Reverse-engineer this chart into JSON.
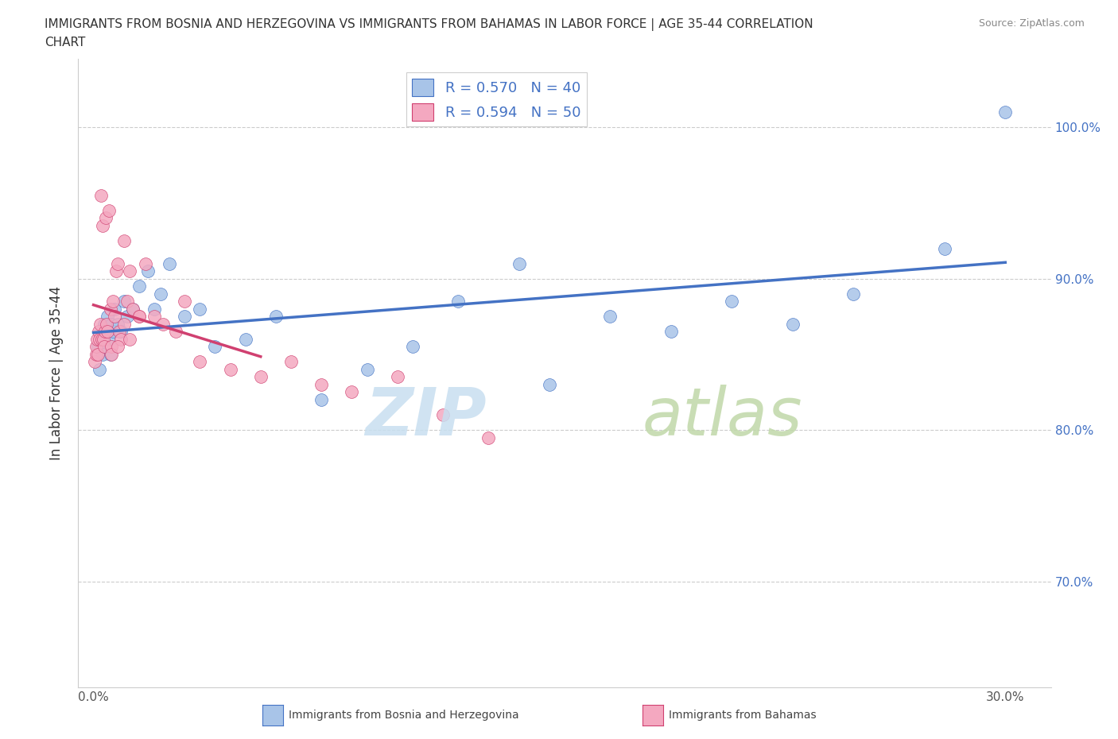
{
  "title_line1": "IMMIGRANTS FROM BOSNIA AND HERZEGOVINA VS IMMIGRANTS FROM BAHAMAS IN LABOR FORCE | AGE 35-44 CORRELATION",
  "title_line2": "CHART",
  "source_text": "Source: ZipAtlas.com",
  "ylabel": "In Labor Force | Age 35-44",
  "xlim_min": -0.5,
  "xlim_max": 31.5,
  "ylim_min": 63.0,
  "ylim_max": 104.5,
  "x_tick_positions": [
    0.0,
    5.0,
    10.0,
    15.0,
    20.0,
    25.0,
    30.0
  ],
  "x_tick_labels": [
    "0.0%",
    "",
    "",
    "",
    "",
    "",
    "30.0%"
  ],
  "y_tick_positions": [
    70.0,
    80.0,
    90.0,
    100.0
  ],
  "y_tick_labels": [
    "70.0%",
    "80.0%",
    "90.0%",
    "100.0%"
  ],
  "bosnia_color": "#a8c4e8",
  "bahamas_color": "#f4a8c0",
  "bosnia_line_color": "#4472c4",
  "bahamas_line_color": "#d04070",
  "bosnia_R": 0.57,
  "bosnia_N": 40,
  "bahamas_R": 0.594,
  "bahamas_N": 50,
  "legend_label_bosnia": "Immigrants from Bosnia and Herzegovina",
  "legend_label_bahamas": "Immigrants from Bahamas",
  "bosnia_x": [
    0.15,
    0.2,
    0.25,
    0.3,
    0.35,
    0.4,
    0.45,
    0.5,
    0.55,
    0.6,
    0.65,
    0.7,
    0.8,
    0.9,
    1.0,
    1.1,
    1.3,
    1.5,
    1.8,
    2.0,
    2.2,
    2.5,
    3.0,
    3.5,
    4.0,
    5.0,
    6.0,
    7.5,
    9.0,
    10.5,
    12.0,
    14.0,
    15.0,
    17.0,
    19.0,
    21.0,
    23.0,
    25.0,
    28.0,
    30.0
  ],
  "bosnia_y": [
    85.5,
    84.0,
    86.0,
    85.0,
    87.0,
    86.5,
    87.5,
    86.0,
    85.0,
    87.0,
    86.5,
    88.0,
    87.0,
    86.5,
    88.5,
    87.5,
    88.0,
    89.5,
    90.5,
    88.0,
    89.0,
    91.0,
    87.5,
    88.0,
    85.5,
    86.0,
    87.5,
    82.0,
    84.0,
    85.5,
    88.5,
    91.0,
    83.0,
    87.5,
    86.5,
    88.5,
    87.0,
    89.0,
    92.0,
    101.0
  ],
  "bahamas_x": [
    0.05,
    0.08,
    0.1,
    0.12,
    0.15,
    0.18,
    0.2,
    0.22,
    0.25,
    0.28,
    0.3,
    0.32,
    0.35,
    0.38,
    0.4,
    0.42,
    0.45,
    0.5,
    0.55,
    0.6,
    0.65,
    0.7,
    0.75,
    0.8,
    0.85,
    0.9,
    1.0,
    1.1,
    1.2,
    1.3,
    1.5,
    1.7,
    2.0,
    2.3,
    2.7,
    3.0,
    3.5,
    4.5,
    5.5,
    6.5,
    7.5,
    8.5,
    10.0,
    11.5,
    13.0,
    0.6,
    0.8,
    1.0,
    1.2,
    1.5
  ],
  "bahamas_y": [
    84.5,
    85.0,
    85.5,
    86.0,
    85.0,
    86.5,
    86.0,
    87.0,
    95.5,
    86.0,
    93.5,
    86.0,
    85.5,
    86.5,
    94.0,
    87.0,
    86.5,
    94.5,
    88.0,
    85.5,
    88.5,
    87.5,
    90.5,
    91.0,
    86.5,
    86.0,
    92.5,
    88.5,
    90.5,
    88.0,
    87.5,
    91.0,
    87.5,
    87.0,
    86.5,
    88.5,
    84.5,
    84.0,
    83.5,
    84.5,
    83.0,
    82.5,
    83.5,
    81.0,
    79.5,
    85.0,
    85.5,
    87.0,
    86.0,
    87.5
  ],
  "grid_color": "#cccccc",
  "spine_color": "#cccccc",
  "tick_label_color_x": "#555555",
  "tick_label_color_y": "#4472c4",
  "ylabel_color": "#333333",
  "title_color": "#333333",
  "source_color": "#888888",
  "watermark_zip_color": "#c8dff0",
  "watermark_atlas_color": "#c0d8a8"
}
